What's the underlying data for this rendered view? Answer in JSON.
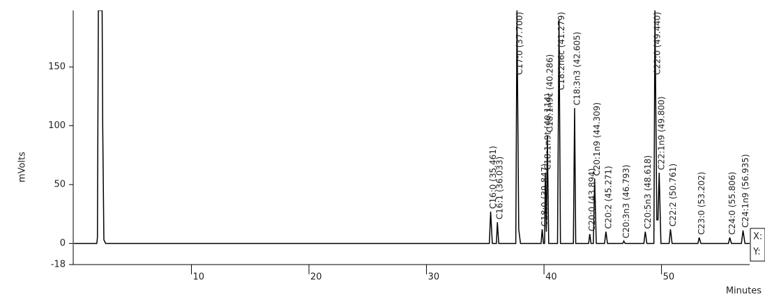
{
  "chart_data": {
    "type": "line",
    "y_label": "mVolts",
    "x_label": "Minutes",
    "xlim": [
      0,
      57.5
    ],
    "ylim": [
      -18,
      198
    ],
    "xticks": [
      10,
      20,
      30,
      40,
      50
    ],
    "yticks": [
      -18,
      0,
      50,
      100,
      150
    ],
    "readout": [
      "X:",
      "Y:"
    ],
    "series": [
      {
        "color": "#000000",
        "x": [
          0,
          1.95,
          2.0,
          2.08,
          2.4,
          2.45,
          2.55,
          2.7,
          35.35,
          35.461,
          35.6,
          35.95,
          36.033,
          36.15,
          37.6,
          37.7,
          37.85,
          38.0,
          39.75,
          39.847,
          39.95,
          40.05,
          40.114,
          40.2,
          40.286,
          40.4,
          41.15,
          41.279,
          41.4,
          42.5,
          42.605,
          42.7,
          43.8,
          43.894,
          44.0,
          44.2,
          44.309,
          44.45,
          45.15,
          45.271,
          45.4,
          46.7,
          46.793,
          46.9,
          48.5,
          48.618,
          48.75,
          49.35,
          49.44,
          49.6,
          49.7,
          49.8,
          49.95,
          50.65,
          50.761,
          50.9,
          53.1,
          53.202,
          53.35,
          55.7,
          55.806,
          55.95,
          56.8,
          56.935,
          57.1,
          57.5
        ],
        "values": [
          0,
          0,
          5,
          198,
          198,
          100,
          3,
          0,
          0,
          27,
          0,
          0,
          18,
          0,
          0,
          198,
          12,
          0,
          0,
          12,
          0,
          0,
          60,
          10,
          92,
          0,
          0,
          190,
          0,
          0,
          115,
          0,
          0,
          8,
          0,
          0,
          55,
          0,
          0,
          10,
          0,
          0,
          2,
          0,
          0,
          10,
          0,
          0,
          198,
          20,
          20,
          60,
          0,
          0,
          12,
          0,
          0,
          5,
          0,
          0,
          5,
          0,
          0,
          11,
          0,
          0
        ]
      }
    ],
    "annotations": [
      {
        "label": "C16:0 (35.461)",
        "x": 35.461,
        "y": 27
      },
      {
        "label": "C16:1 (36.033)",
        "x": 36.033,
        "y": 18
      },
      {
        "label": "C17:0 (37.700)",
        "x": 37.7,
        "y": 198
      },
      {
        "label": "C18:0 (39.847)",
        "x": 39.847,
        "y": 12
      },
      {
        "label": "C18:1n9t (40.114)",
        "x": 40.114,
        "y": 60
      },
      {
        "label": "C18:1n9c (40.286)",
        "x": 40.286,
        "y": 92
      },
      {
        "label": "C18:2n6c (41.279)",
        "x": 41.279,
        "y": 190
      },
      {
        "label": "C18:3n3 (42.605)",
        "x": 42.605,
        "y": 115
      },
      {
        "label": "C20:0 (43.894)",
        "x": 43.894,
        "y": 8
      },
      {
        "label": "C20:1n9 (44.309)",
        "x": 44.309,
        "y": 55
      },
      {
        "label": "C20:2 (45.271)",
        "x": 45.271,
        "y": 10
      },
      {
        "label": "C20:3n3 (46.793)",
        "x": 46.793,
        "y": 2
      },
      {
        "label": "C20:5n3 (48.618)",
        "x": 48.618,
        "y": 10
      },
      {
        "label": "C22:0 (49.440)",
        "x": 49.44,
        "y": 198
      },
      {
        "label": "C22:1n9 (49.800)",
        "x": 49.8,
        "y": 60
      },
      {
        "label": "C22:2 (50.761)",
        "x": 50.761,
        "y": 12
      },
      {
        "label": "C23:0 (53.202)",
        "x": 53.202,
        "y": 5
      },
      {
        "label": "C24:0 (55.806)",
        "x": 55.806,
        "y": 5
      },
      {
        "label": "C24:1n9 (56.935)",
        "x": 56.935,
        "y": 11
      }
    ]
  }
}
